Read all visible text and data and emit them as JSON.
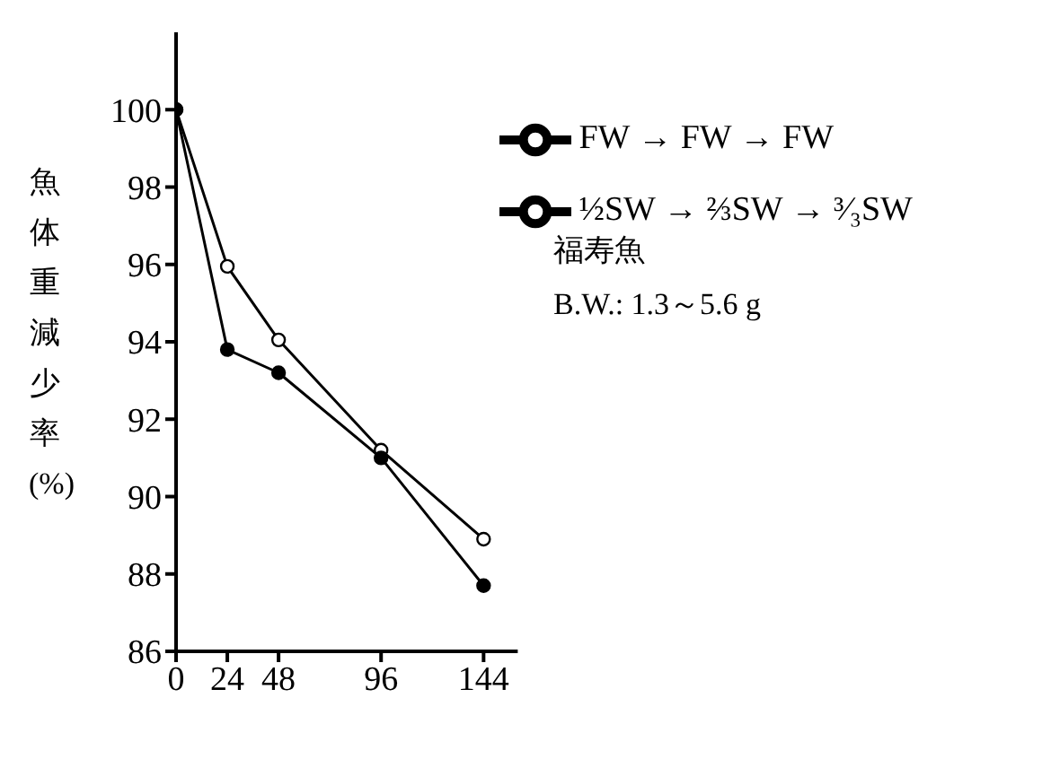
{
  "chart_data": {
    "type": "line",
    "ylabel": "魚体重減少率(%)",
    "annotations": [
      "福寿魚",
      "B.W.: 1.3～5.6 g"
    ],
    "x": [
      0,
      24,
      48,
      96,
      144
    ],
    "series": [
      {
        "name": "FW → FW → FW",
        "color": "#000000",
        "values": [
          100,
          95.95,
          94.05,
          91.2,
          88.9
        ]
      },
      {
        "name": "½SW → ⅔SW → ³⁄₃SW",
        "color": "#000000",
        "values": [
          100,
          93.8,
          93.2,
          91.0,
          87.7
        ]
      }
    ],
    "xlim": [
      0,
      160
    ],
    "xticks": [
      0,
      24,
      48,
      96,
      144
    ],
    "ylim": [
      86,
      102
    ],
    "yticks": [
      86,
      88,
      90,
      92,
      94,
      96,
      98,
      100
    ],
    "grid": false,
    "legend": "top right",
    "marker": "circle",
    "line_style": "solid"
  }
}
